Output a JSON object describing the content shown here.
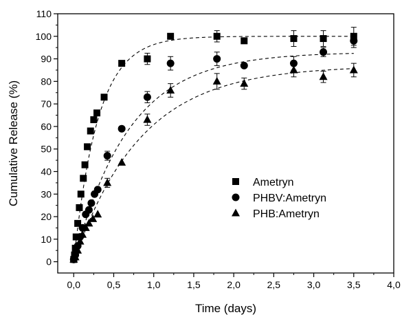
{
  "chart_data": {
    "type": "scatter",
    "title": "",
    "xlabel": "Time (days)",
    "ylabel": "Cumulative Release (%)",
    "xlim": [
      -0.2,
      4.0
    ],
    "ylim": [
      -5,
      110
    ],
    "xticks": [
      0.0,
      0.5,
      1.0,
      1.5,
      2.0,
      2.5,
      3.0,
      3.5,
      4.0
    ],
    "xtick_labels": [
      "0,0",
      "0,5",
      "1,0",
      "1,5",
      "2,0",
      "2,5",
      "3,0",
      "3,5",
      "4,0"
    ],
    "yticks": [
      0,
      10,
      20,
      30,
      40,
      50,
      60,
      70,
      80,
      90,
      100,
      110
    ],
    "ytick_labels": [
      "0",
      "10",
      "20",
      "30",
      "40",
      "50",
      "60",
      "70",
      "80",
      "90",
      "100",
      "110"
    ],
    "grid": false,
    "legend_position": "center-right",
    "fit_lines": "dashed",
    "series": [
      {
        "name": "Ametryn",
        "marker": "square",
        "color": "#000000",
        "points": [
          {
            "x": 0.0,
            "y": 1,
            "err": 0
          },
          {
            "x": 0.01,
            "y": 3,
            "err": 0
          },
          {
            "x": 0.02,
            "y": 6,
            "err": 0
          },
          {
            "x": 0.03,
            "y": 11,
            "err": 0
          },
          {
            "x": 0.05,
            "y": 17,
            "err": 0
          },
          {
            "x": 0.07,
            "y": 24,
            "err": 0
          },
          {
            "x": 0.09,
            "y": 30,
            "err": 0
          },
          {
            "x": 0.12,
            "y": 37,
            "err": 0
          },
          {
            "x": 0.14,
            "y": 43,
            "err": 0
          },
          {
            "x": 0.17,
            "y": 51,
            "err": 0
          },
          {
            "x": 0.21,
            "y": 58,
            "err": 0
          },
          {
            "x": 0.25,
            "y": 63,
            "err": 0
          },
          {
            "x": 0.29,
            "y": 66,
            "err": 0
          },
          {
            "x": 0.38,
            "y": 73,
            "err": 0
          },
          {
            "x": 0.6,
            "y": 88,
            "err": 0
          },
          {
            "x": 0.92,
            "y": 90,
            "err": 2.5
          },
          {
            "x": 1.21,
            "y": 100,
            "err": 0
          },
          {
            "x": 1.79,
            "y": 100,
            "err": 2.5
          },
          {
            "x": 2.13,
            "y": 98,
            "err": 0
          },
          {
            "x": 2.75,
            "y": 99,
            "err": 3.5
          },
          {
            "x": 3.12,
            "y": 99,
            "err": 3.5
          },
          {
            "x": 3.5,
            "y": 100,
            "err": 4
          }
        ],
        "fit": {
          "ymax": 100,
          "k": 3.3
        }
      },
      {
        "name": "PHBV:Ametryn",
        "marker": "circle",
        "color": "#000000",
        "points": [
          {
            "x": 0.0,
            "y": 1,
            "err": 0
          },
          {
            "x": 0.02,
            "y": 3,
            "err": 0
          },
          {
            "x": 0.05,
            "y": 7,
            "err": 0
          },
          {
            "x": 0.08,
            "y": 11,
            "err": 0
          },
          {
            "x": 0.11,
            "y": 15,
            "err": 0
          },
          {
            "x": 0.15,
            "y": 21,
            "err": 0
          },
          {
            "x": 0.19,
            "y": 23,
            "err": 0
          },
          {
            "x": 0.22,
            "y": 26,
            "err": 0
          },
          {
            "x": 0.26,
            "y": 30,
            "err": 0
          },
          {
            "x": 0.3,
            "y": 32,
            "err": 0
          },
          {
            "x": 0.42,
            "y": 47,
            "err": 2
          },
          {
            "x": 0.6,
            "y": 59,
            "err": 0
          },
          {
            "x": 0.92,
            "y": 73,
            "err": 2.5
          },
          {
            "x": 1.21,
            "y": 88,
            "err": 3
          },
          {
            "x": 1.79,
            "y": 90,
            "err": 3
          },
          {
            "x": 2.13,
            "y": 87,
            "err": 0
          },
          {
            "x": 2.75,
            "y": 88,
            "err": 3
          },
          {
            "x": 3.12,
            "y": 93,
            "err": 2
          },
          {
            "x": 3.5,
            "y": 98,
            "err": 3
          }
        ],
        "fit": {
          "ymax": 93,
          "k": 1.45
        }
      },
      {
        "name": "PHB:Ametryn",
        "marker": "triangle",
        "color": "#000000",
        "points": [
          {
            "x": 0.0,
            "y": 1,
            "err": 0
          },
          {
            "x": 0.02,
            "y": 2,
            "err": 0
          },
          {
            "x": 0.05,
            "y": 5,
            "err": 0
          },
          {
            "x": 0.08,
            "y": 9,
            "err": 0
          },
          {
            "x": 0.11,
            "y": 12,
            "err": 0
          },
          {
            "x": 0.15,
            "y": 15,
            "err": 0
          },
          {
            "x": 0.19,
            "y": 17,
            "err": 0
          },
          {
            "x": 0.24,
            "y": 19,
            "err": 0
          },
          {
            "x": 0.3,
            "y": 21,
            "err": 0
          },
          {
            "x": 0.42,
            "y": 35,
            "err": 2
          },
          {
            "x": 0.6,
            "y": 44,
            "err": 0
          },
          {
            "x": 0.92,
            "y": 63,
            "err": 2.5
          },
          {
            "x": 1.21,
            "y": 76,
            "err": 3
          },
          {
            "x": 1.79,
            "y": 80,
            "err": 3.5
          },
          {
            "x": 2.13,
            "y": 79,
            "err": 2.5
          },
          {
            "x": 2.75,
            "y": 85,
            "err": 3
          },
          {
            "x": 3.12,
            "y": 82,
            "err": 2.5
          },
          {
            "x": 3.5,
            "y": 85,
            "err": 3
          }
        ],
        "fit": {
          "ymax": 87,
          "k": 1.2
        }
      }
    ]
  }
}
